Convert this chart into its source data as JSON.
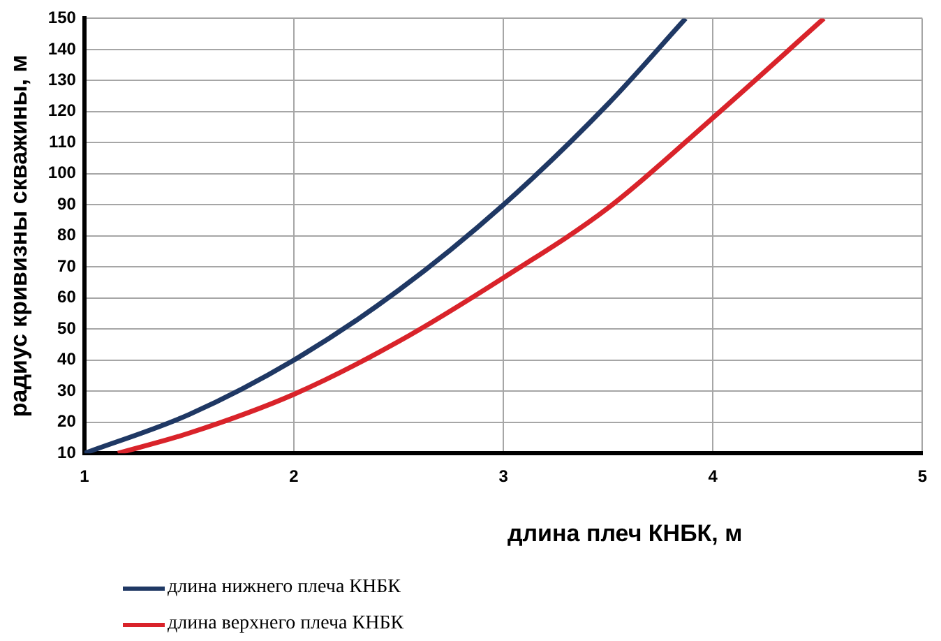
{
  "chart_data": {
    "type": "line",
    "xlabel": "длина плеч КНБК, м",
    "ylabel": "радиус кривизны скважины, м",
    "xlim": [
      1,
      5
    ],
    "xticks": [
      1,
      2,
      3,
      4,
      5
    ],
    "ylim": [
      10,
      150
    ],
    "yticks": [
      10,
      20,
      30,
      40,
      50,
      60,
      70,
      80,
      90,
      100,
      110,
      120,
      130,
      140,
      150
    ],
    "grid": true,
    "legend": "bottom left",
    "marker": "none",
    "line_style": "solid",
    "series": [
      {
        "name": "длина нижнего плеча КНБК",
        "color": "#1f3864",
        "x": [
          1,
          1.5,
          2,
          2.5,
          3,
          3.5,
          3.87
        ],
        "values": [
          10,
          22.5,
          40,
          62.5,
          90,
          122.5,
          150
        ]
      },
      {
        "name": "длина верхнего плеча КНБК",
        "color": "#d9232a",
        "x": [
          1.16,
          1.5,
          2,
          2.5,
          3,
          3.5,
          4,
          4.53
        ],
        "values": [
          10,
          16.5,
          29,
          46,
          66.5,
          89,
          118,
          150
        ]
      }
    ]
  }
}
